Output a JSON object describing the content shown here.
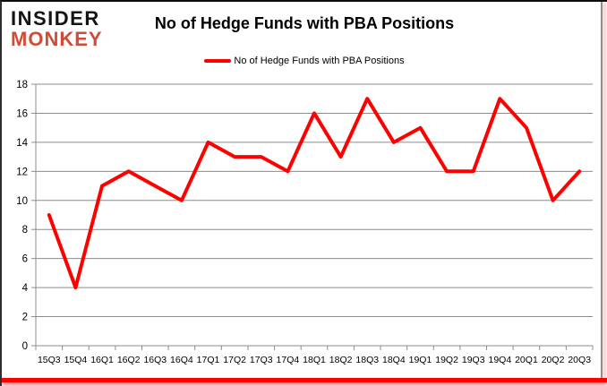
{
  "logo": {
    "line1": "INSIDER",
    "line2": "MONKEY"
  },
  "colors": {
    "line": "#ff0000",
    "grid": "#8c8c8c",
    "axis": "#8c8c8c",
    "tick_label": "#000000",
    "logo_black": "#141414",
    "logo_red": "#d04b38",
    "bottom_bar": "#ff0000"
  },
  "chart_data": {
    "type": "line",
    "title": "No of Hedge Funds with PBA Positions",
    "legend": "No of Hedge Funds with PBA Positions",
    "legend_position": "top-center",
    "categories": [
      "15Q3",
      "15Q4",
      "16Q1",
      "16Q2",
      "16Q3",
      "16Q4",
      "17Q1",
      "17Q2",
      "17Q3",
      "17Q4",
      "18Q1",
      "18Q2",
      "18Q3",
      "18Q4",
      "19Q1",
      "19Q2",
      "19Q3",
      "19Q4",
      "20Q1",
      "20Q2",
      "20Q3"
    ],
    "values": [
      9,
      4,
      11,
      12,
      11,
      10,
      14,
      13,
      13,
      12,
      16,
      13,
      17,
      14,
      15,
      12,
      12,
      17,
      15,
      10,
      12
    ],
    "xlabel": "",
    "ylabel": "",
    "ylim": [
      0,
      18
    ],
    "ytick_step": 2,
    "grid": "horizontal",
    "line_color": "#ff0000",
    "line_width": 4
  }
}
